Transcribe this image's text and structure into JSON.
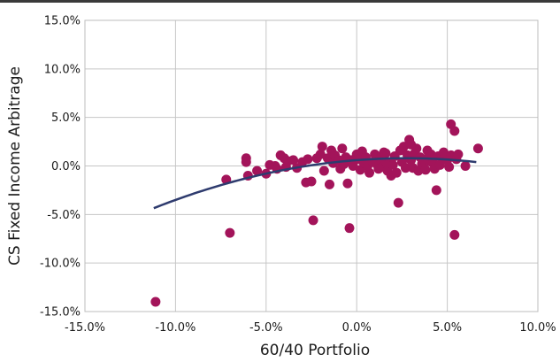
{
  "chart_data": {
    "type": "scatter",
    "xlabel": "60/40 Portfolio",
    "ylabel": "CS Fixed Income Arbitrage",
    "xlim": [
      -15.0,
      10.0
    ],
    "ylim": [
      -15.0,
      15.0
    ],
    "x_ticks": [
      -15,
      -10,
      -5,
      0,
      5,
      10
    ],
    "y_ticks": [
      -15,
      -10,
      -5,
      0,
      5,
      10,
      15
    ],
    "x_tick_labels": [
      "-15.0%",
      "-10.0%",
      "-5.0%",
      "0.0%",
      "5.0%",
      "10.0%"
    ],
    "y_tick_labels": [
      "-15.0%",
      "-10.0%",
      "-5.0%",
      "0.0%",
      "5.0%",
      "10.0%",
      "15.0%"
    ],
    "grid": true,
    "legend": "none",
    "colors": {
      "points": "#a3145a",
      "trend_line": "#2e3b6e",
      "grid": "#c6c6c6",
      "frame": "#bdbdbd"
    },
    "series": [
      {
        "points": [
          [
            -11.1,
            -14.0
          ],
          [
            -7.2,
            -1.4
          ],
          [
            -7.0,
            -6.9
          ],
          [
            -6.1,
            0.8
          ],
          [
            -6.1,
            0.4
          ],
          [
            -6.0,
            -1.0
          ],
          [
            -5.5,
            -0.5
          ],
          [
            -5.0,
            -0.8
          ],
          [
            -4.8,
            0.1
          ],
          [
            -4.5,
            0.0
          ],
          [
            -4.4,
            -0.3
          ],
          [
            -4.2,
            1.1
          ],
          [
            -4.0,
            0.8
          ],
          [
            -3.8,
            0.5
          ],
          [
            -3.5,
            0.6
          ],
          [
            -3.3,
            -0.2
          ],
          [
            -3.0,
            0.4
          ],
          [
            -2.8,
            -1.7
          ],
          [
            -2.7,
            0.7
          ],
          [
            -2.5,
            -1.6
          ],
          [
            -2.4,
            -5.6
          ],
          [
            -2.2,
            0.8
          ],
          [
            -2.0,
            1.2
          ],
          [
            -1.9,
            2.0
          ],
          [
            -1.8,
            -0.5
          ],
          [
            -1.6,
            0.8
          ],
          [
            -1.5,
            -1.9
          ],
          [
            -1.4,
            1.6
          ],
          [
            -1.3,
            0.3
          ],
          [
            -1.2,
            1.1
          ],
          [
            -1.0,
            0.6
          ],
          [
            -0.9,
            -0.3
          ],
          [
            -0.8,
            1.8
          ],
          [
            -0.7,
            0.2
          ],
          [
            -0.6,
            0.9
          ],
          [
            -0.5,
            -1.8
          ],
          [
            -0.4,
            -6.4
          ],
          [
            -0.3,
            0.6
          ],
          [
            -0.2,
            0.0
          ],
          [
            0.0,
            1.2
          ],
          [
            0.1,
            0.7
          ],
          [
            0.2,
            -0.4
          ],
          [
            0.3,
            1.5
          ],
          [
            0.4,
            0.3
          ],
          [
            0.5,
            0.9
          ],
          [
            0.6,
            0.0
          ],
          [
            0.7,
            -0.7
          ],
          [
            0.9,
            0.4
          ],
          [
            1.0,
            1.2
          ],
          [
            1.1,
            0.2
          ],
          [
            1.2,
            -0.3
          ],
          [
            1.3,
            0.8
          ],
          [
            1.4,
            -0.1
          ],
          [
            1.5,
            1.4
          ],
          [
            1.6,
            0.5
          ],
          [
            1.7,
            -0.5
          ],
          [
            1.8,
            0.3
          ],
          [
            1.9,
            -1.0
          ],
          [
            2.0,
            0.1
          ],
          [
            2.1,
            1.0
          ],
          [
            2.2,
            -0.7
          ],
          [
            2.3,
            -3.8
          ],
          [
            2.4,
            1.6
          ],
          [
            2.5,
            0.4
          ],
          [
            2.6,
            2.0
          ],
          [
            2.7,
            -0.2
          ],
          [
            2.8,
            1.1
          ],
          [
            2.9,
            2.7
          ],
          [
            3.0,
            0.6
          ],
          [
            3.1,
            -0.2
          ],
          [
            3.2,
            1.3
          ],
          [
            3.3,
            1.8
          ],
          [
            3.4,
            -0.5
          ],
          [
            3.5,
            0.9
          ],
          [
            3.6,
            0.2
          ],
          [
            3.7,
            0.7
          ],
          [
            3.8,
            -0.4
          ],
          [
            3.9,
            1.6
          ],
          [
            4.0,
            0.5
          ],
          [
            4.1,
            1.2
          ],
          [
            4.2,
            0.3
          ],
          [
            4.3,
            -0.3
          ],
          [
            4.4,
            -2.5
          ],
          [
            4.5,
            1.0
          ],
          [
            4.6,
            0.1
          ],
          [
            4.7,
            0.8
          ],
          [
            4.8,
            1.4
          ],
          [
            5.0,
            0.6
          ],
          [
            5.1,
            -0.1
          ],
          [
            5.2,
            1.1
          ],
          [
            5.2,
            4.3
          ],
          [
            5.4,
            3.6
          ],
          [
            5.4,
            -7.1
          ],
          [
            5.5,
            0.7
          ],
          [
            5.6,
            1.2
          ],
          [
            6.0,
            0.0
          ],
          [
            6.7,
            1.8
          ],
          [
            3.0,
            2.2
          ],
          [
            1.6,
            1.3
          ],
          [
            -3.9,
            -0.1
          ]
        ]
      }
    ],
    "trendline": {
      "type": "quadratic",
      "x_range": [
        -11.2,
        6.6
      ],
      "coefficients": [
        0.6,
        0.145,
        -0.0265
      ]
    }
  }
}
